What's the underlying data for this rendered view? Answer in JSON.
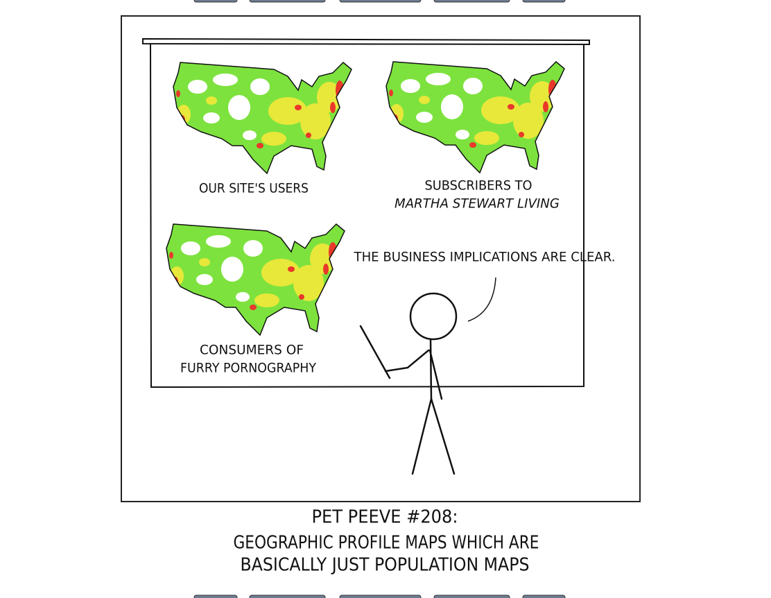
{
  "comic": {
    "maps": [
      {
        "caption": [
          "OUR SITE'S USERS"
        ]
      },
      {
        "caption": [
          "SUBSCRIBERS TO",
          "MARTHA STEWART LIVING"
        ]
      },
      {
        "caption": [
          "CONSUMERS OF",
          "FURRY PORNOGRAPHY"
        ]
      }
    ],
    "speech": "THE BUSINESS IMPLICATIONS ARE CLEAR.",
    "caption": [
      "PET PEEVE #208:",
      "GEOGRAPHIC PROFILE MAPS WHICH ARE",
      "BASICALLY JUST POPULATION MAPS"
    ]
  }
}
